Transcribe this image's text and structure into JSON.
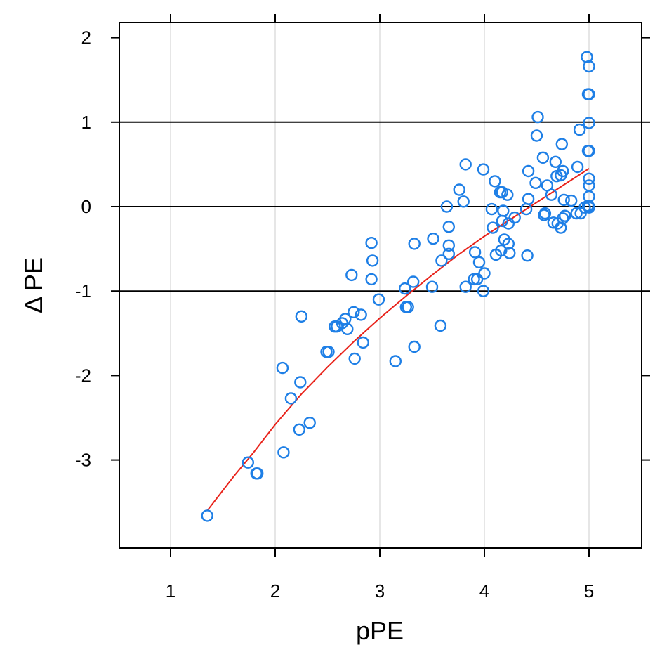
{
  "chart_data": {
    "type": "scatter",
    "xlabel": "pPE",
    "ylabel": "Δ PE",
    "xlim": [
      0.5,
      5.5
    ],
    "ylim": [
      -4.0,
      2.2
    ],
    "x_ticks": [
      1,
      2,
      3,
      4,
      5
    ],
    "y_ticks": [
      2,
      1,
      0,
      -1,
      -2,
      -3
    ],
    "x_tick_labels": [
      "1",
      "2",
      "3",
      "4",
      "5"
    ],
    "y_tick_labels": [
      "2",
      "1",
      "0",
      "-1",
      "-2",
      "-3"
    ],
    "reference_lines_y": [
      1,
      0,
      -1
    ],
    "grid": true,
    "colors": {
      "points": "#1e7fe6",
      "fit": "#e8231b",
      "reference": "#000000",
      "grid": "#e6e6e6"
    },
    "points": [
      [
        1.35,
        -3.66
      ],
      [
        1.74,
        -3.03
      ],
      [
        1.82,
        -3.16
      ],
      [
        1.83,
        -3.16
      ],
      [
        2.07,
        -1.91
      ],
      [
        2.08,
        -2.91
      ],
      [
        2.15,
        -2.27
      ],
      [
        2.23,
        -2.64
      ],
      [
        2.24,
        -2.08
      ],
      [
        2.25,
        -1.3
      ],
      [
        2.33,
        -2.56
      ],
      [
        2.49,
        -1.72
      ],
      [
        2.51,
        -1.72
      ],
      [
        2.57,
        -1.42
      ],
      [
        2.59,
        -1.42
      ],
      [
        2.64,
        -1.38
      ],
      [
        2.67,
        -1.33
      ],
      [
        2.69,
        -1.45
      ],
      [
        2.73,
        -0.81
      ],
      [
        2.75,
        -1.25
      ],
      [
        2.76,
        -1.8
      ],
      [
        2.82,
        -1.28
      ],
      [
        2.84,
        -1.61
      ],
      [
        2.92,
        -0.43
      ],
      [
        2.93,
        -0.64
      ],
      [
        2.92,
        -0.86
      ],
      [
        2.99,
        -1.1
      ],
      [
        3.15,
        -1.83
      ],
      [
        3.24,
        -0.97
      ],
      [
        3.25,
        -1.19
      ],
      [
        3.27,
        -1.19
      ],
      [
        3.32,
        -0.89
      ],
      [
        3.33,
        -0.44
      ],
      [
        3.33,
        -1.66
      ],
      [
        3.5,
        -0.95
      ],
      [
        3.51,
        -0.38
      ],
      [
        3.58,
        -1.41
      ],
      [
        3.59,
        -0.64
      ],
      [
        3.64,
        0.0
      ],
      [
        3.66,
        -0.24
      ],
      [
        3.66,
        -0.46
      ],
      [
        3.66,
        -0.56
      ],
      [
        3.76,
        0.2
      ],
      [
        3.8,
        0.06
      ],
      [
        3.82,
        0.5
      ],
      [
        3.82,
        -0.95
      ],
      [
        3.9,
        -0.86
      ],
      [
        3.91,
        -0.54
      ],
      [
        3.93,
        -0.86
      ],
      [
        3.95,
        -0.66
      ],
      [
        3.99,
        -1.0
      ],
      [
        3.99,
        0.44
      ],
      [
        4.0,
        -0.79
      ],
      [
        4.07,
        -0.03
      ],
      [
        4.08,
        -0.25
      ],
      [
        4.1,
        0.3
      ],
      [
        4.11,
        -0.57
      ],
      [
        4.15,
        0.17
      ],
      [
        4.16,
        -0.52
      ],
      [
        4.17,
        0.17
      ],
      [
        4.17,
        -0.17
      ],
      [
        4.18,
        -0.05
      ],
      [
        4.19,
        -0.39
      ],
      [
        4.22,
        0.14
      ],
      [
        4.23,
        -0.2
      ],
      [
        4.23,
        -0.44
      ],
      [
        4.24,
        -0.55
      ],
      [
        4.29,
        -0.13
      ],
      [
        4.4,
        -0.03
      ],
      [
        4.41,
        -0.58
      ],
      [
        4.42,
        0.09
      ],
      [
        4.42,
        0.42
      ],
      [
        4.49,
        0.28
      ],
      [
        4.5,
        0.84
      ],
      [
        4.51,
        1.06
      ],
      [
        4.56,
        0.58
      ],
      [
        4.57,
        -0.1
      ],
      [
        4.58,
        -0.08
      ],
      [
        4.6,
        0.25
      ],
      [
        4.64,
        0.14
      ],
      [
        4.66,
        -0.19
      ],
      [
        4.68,
        0.53
      ],
      [
        4.69,
        0.36
      ],
      [
        4.7,
        -0.2
      ],
      [
        4.73,
        -0.25
      ],
      [
        4.73,
        0.37
      ],
      [
        4.74,
        0.74
      ],
      [
        4.75,
        0.42
      ],
      [
        4.75,
        -0.14
      ],
      [
        4.76,
        0.08
      ],
      [
        4.77,
        -0.11
      ],
      [
        4.83,
        0.07
      ],
      [
        4.88,
        -0.08
      ],
      [
        4.89,
        0.47
      ],
      [
        4.91,
        0.91
      ],
      [
        4.92,
        -0.08
      ],
      [
        4.96,
        -0.01
      ],
      [
        4.98,
        1.77
      ],
      [
        4.99,
        1.33
      ],
      [
        5.0,
        1.66
      ],
      [
        5.0,
        1.33
      ],
      [
        5.0,
        0.99
      ],
      [
        4.99,
        0.66
      ],
      [
        5.0,
        0.66
      ],
      [
        5.0,
        0.33
      ],
      [
        5.0,
        0.25
      ],
      [
        5.0,
        0.12
      ],
      [
        4.99,
        0.01
      ],
      [
        5.0,
        0.0
      ],
      [
        5.0,
        -0.01
      ]
    ],
    "fit_line": [
      [
        1.35,
        -3.6
      ],
      [
        1.6,
        -3.2
      ],
      [
        1.8,
        -2.9
      ],
      [
        2.0,
        -2.58
      ],
      [
        2.25,
        -2.22
      ],
      [
        2.5,
        -1.9
      ],
      [
        2.75,
        -1.6
      ],
      [
        3.0,
        -1.32
      ],
      [
        3.25,
        -1.06
      ],
      [
        3.5,
        -0.81
      ],
      [
        3.75,
        -0.57
      ],
      [
        4.0,
        -0.35
      ],
      [
        4.25,
        -0.15
      ],
      [
        4.5,
        0.05
      ],
      [
        4.75,
        0.25
      ],
      [
        5.0,
        0.45
      ]
    ]
  }
}
